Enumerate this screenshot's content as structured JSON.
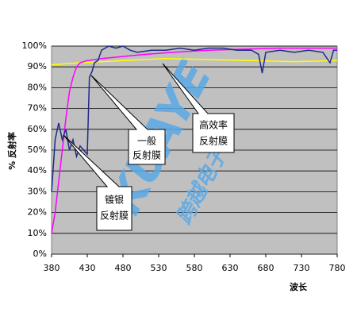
{
  "chart_data": {
    "type": "line",
    "y_label": "% 反射率",
    "x_label": "波长",
    "xlim": [
      380,
      780
    ],
    "xticks": [
      380,
      430,
      480,
      530,
      580,
      630,
      680,
      730,
      780
    ],
    "ylim": [
      0,
      100
    ],
    "yticks": [
      {
        "value": 0,
        "label": "0%"
      },
      {
        "value": 10,
        "label": "10%"
      },
      {
        "value": 20,
        "label": "20%"
      },
      {
        "value": 30,
        "label": "30%"
      },
      {
        "value": 40,
        "label": "40%"
      },
      {
        "value": 50,
        "label": "50%"
      },
      {
        "value": 60,
        "label": "60%"
      },
      {
        "value": 70,
        "label": "70%"
      },
      {
        "value": 80,
        "label": "80%"
      },
      {
        "value": 90,
        "label": "90%"
      },
      {
        "value": 100,
        "label": "100%"
      }
    ],
    "grid": true,
    "series": [
      {
        "color": "#ffff00",
        "x": [
          380,
          420,
          480,
          540,
          600,
          660,
          720,
          780
        ],
        "values": [
          91,
          92,
          93,
          94,
          93.5,
          93,
          92.5,
          93
        ]
      },
      {
        "color": "#ff00ff",
        "x": [
          380,
          385,
          390,
          395,
          400,
          405,
          410,
          415,
          420,
          430,
          450,
          480,
          510,
          550,
          600,
          650,
          700,
          780
        ],
        "values": [
          10,
          20,
          35,
          50,
          65,
          78,
          85,
          90,
          92,
          93,
          94,
          95,
          96,
          97,
          98,
          98.5,
          99,
          99
        ]
      },
      {
        "color": "#1f2a8a",
        "x": [
          380,
          385,
          390,
          395,
          400,
          405,
          410,
          415,
          420,
          425,
          430,
          433,
          437,
          440,
          445,
          450,
          460,
          470,
          480,
          490,
          500,
          520,
          540,
          560,
          580,
          600,
          620,
          640,
          660,
          670,
          675,
          680,
          700,
          720,
          740,
          760,
          770,
          775,
          780
        ],
        "values": [
          30,
          55,
          63,
          55,
          60,
          50,
          55,
          47,
          52,
          50,
          48,
          85,
          88,
          92,
          93,
          98,
          100,
          99,
          100,
          98,
          97,
          98,
          98,
          99,
          98,
          99,
          99,
          98,
          98,
          96,
          87,
          97,
          98,
          97,
          98,
          97,
          92,
          98,
          98
        ]
      }
    ],
    "annotations": [
      {
        "lines": [
          "镀银",
          "反射膜"
        ]
      },
      {
        "lines": [
          "一般",
          "反射膜"
        ]
      },
      {
        "lines": [
          "高效率",
          "反射膜"
        ]
      }
    ],
    "watermark": [
      "KUAYE",
      "跨越电子"
    ]
  }
}
